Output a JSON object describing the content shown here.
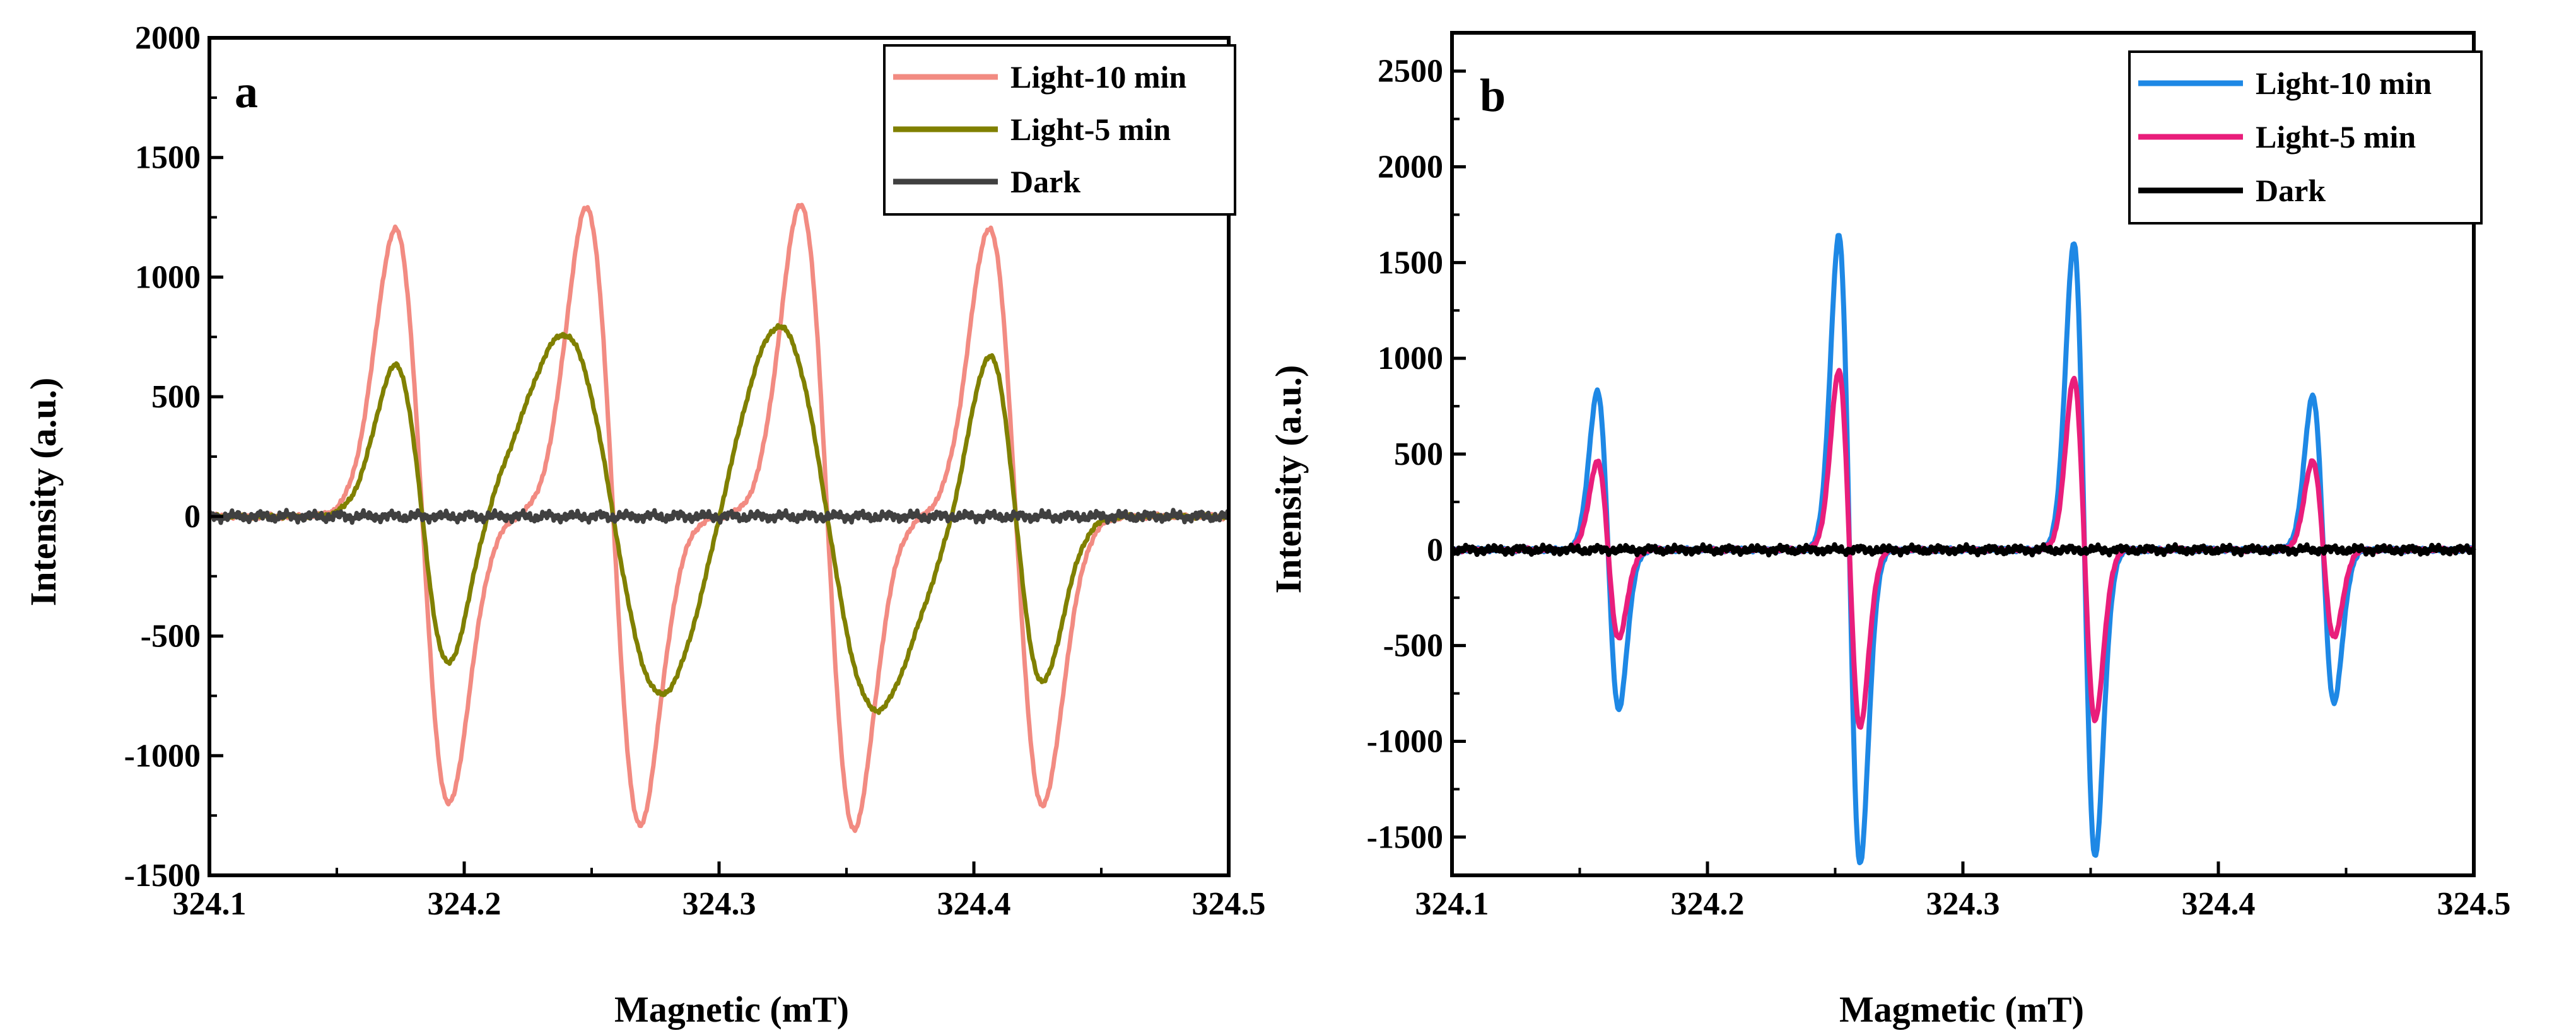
{
  "chart_data": [
    {
      "type": "line",
      "panel": "a",
      "xlabel": "Magnetic (mT)",
      "ylabel": "Intensity (a.u.)",
      "xlim": [
        324.1,
        324.5
      ],
      "ylim": [
        -1500,
        2000
      ],
      "xticks": [
        324.1,
        324.2,
        324.3,
        324.4,
        324.5
      ],
      "xtick_labels": [
        "324.1",
        "324.2",
        "324.3",
        "324.4",
        "324.5"
      ],
      "yticks": [
        -1500,
        -1000,
        -500,
        0,
        500,
        1000,
        1500,
        2000
      ],
      "ytick_labels": [
        "-1500",
        "-1000",
        "-500",
        "0",
        "500",
        "1000",
        "1500",
        "2000"
      ],
      "legend_position": "top-right",
      "series": [
        {
          "name": "Light-10 min",
          "color": "#F28B82",
          "lines": [
            {
              "c": 324.1835,
              "A": 1200,
              "w": 0.0105
            },
            {
              "c": 324.2585,
              "A": 1290,
              "w": 0.0105
            },
            {
              "c": 324.3425,
              "A": 1305,
              "w": 0.0105
            },
            {
              "c": 324.4165,
              "A": 1205,
              "w": 0.0105
            }
          ]
        },
        {
          "name": "Light-5 min",
          "color": "#808000",
          "lines": [
            {
              "c": 324.1835,
              "A": 630,
              "w": 0.0105
            },
            {
              "c": 324.2585,
              "A": 760,
              "w": 0.0195
            },
            {
              "c": 324.3425,
              "A": 810,
              "w": 0.0195
            },
            {
              "c": 324.4165,
              "A": 690,
              "w": 0.0105
            }
          ]
        },
        {
          "name": "Dark",
          "color": "#404040",
          "lines": []
        }
      ]
    },
    {
      "type": "line",
      "panel": "b",
      "xlabel": "Magmetic (mT)",
      "ylabel": "Intensity (a.u.)",
      "xlim": [
        324.1,
        324.5
      ],
      "ylim": [
        -1700,
        2700
      ],
      "xticks": [
        324.1,
        324.2,
        324.3,
        324.4,
        324.5
      ],
      "xtick_labels": [
        "324.1",
        "324.2",
        "324.3",
        "324.4",
        "324.5"
      ],
      "yticks": [
        -1500,
        -1000,
        -500,
        0,
        500,
        1000,
        1500,
        2000,
        2500
      ],
      "ytick_labels": [
        "-1500",
        "-1000",
        "-500",
        "0",
        "500",
        "1000",
        "1500",
        "2000",
        "2500"
      ],
      "legend_position": "top-right",
      "series": [
        {
          "name": "Light-10 min",
          "color": "#1E88E5",
          "lines": [
            {
              "c": 324.1611,
              "A": 830,
              "w": 0.0042
            },
            {
              "c": 324.2556,
              "A": 1640,
              "w": 0.0042
            },
            {
              "c": 324.3476,
              "A": 1600,
              "w": 0.0042
            },
            {
              "c": 324.4411,
              "A": 800,
              "w": 0.0042
            }
          ]
        },
        {
          "name": "Light-5 min",
          "color": "#E91E7B",
          "lines": [
            {
              "c": 324.1611,
              "A": 460,
              "w": 0.0042
            },
            {
              "c": 324.2556,
              "A": 930,
              "w": 0.0042
            },
            {
              "c": 324.3476,
              "A": 890,
              "w": 0.0042
            },
            {
              "c": 324.4411,
              "A": 460,
              "w": 0.0042
            }
          ]
        },
        {
          "name": "Dark",
          "color": "#000000",
          "lines": []
        }
      ]
    }
  ]
}
